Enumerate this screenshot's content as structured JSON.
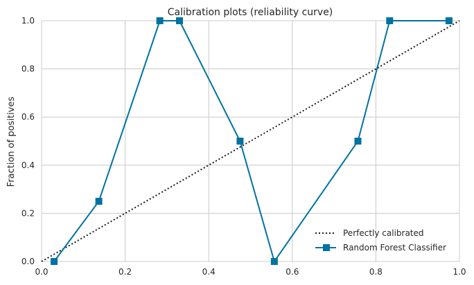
{
  "chart_data": {
    "type": "line",
    "title": "Calibration plots (reliability curve)",
    "xlabel": "",
    "ylabel": "Fraction of positives",
    "xlim": [
      0.0,
      1.0
    ],
    "ylim": [
      0.0,
      1.0
    ],
    "xticks": [
      "0.0",
      "0.2",
      "0.4",
      "0.6",
      "0.8",
      "1.0"
    ],
    "yticks": [
      "0.0",
      "0.2",
      "0.4",
      "0.6",
      "0.8",
      "1.0"
    ],
    "grid": true,
    "legend_position": "lower-right",
    "series": [
      {
        "name": "Perfectly calibrated",
        "style": "dotted",
        "color": "#1a1a1a",
        "x": [
          0.0,
          1.0
        ],
        "y": [
          0.0,
          1.0
        ]
      },
      {
        "name": "Random Forest Classifier",
        "style": "solid-square-markers",
        "color": "#0072a1",
        "x": [
          0.03,
          0.137,
          0.283,
          0.33,
          0.475,
          0.557,
          0.757,
          0.833,
          0.975
        ],
        "y": [
          0.0,
          0.25,
          1.0,
          1.0,
          0.5,
          0.0,
          0.5,
          1.0,
          1.0
        ]
      }
    ]
  }
}
